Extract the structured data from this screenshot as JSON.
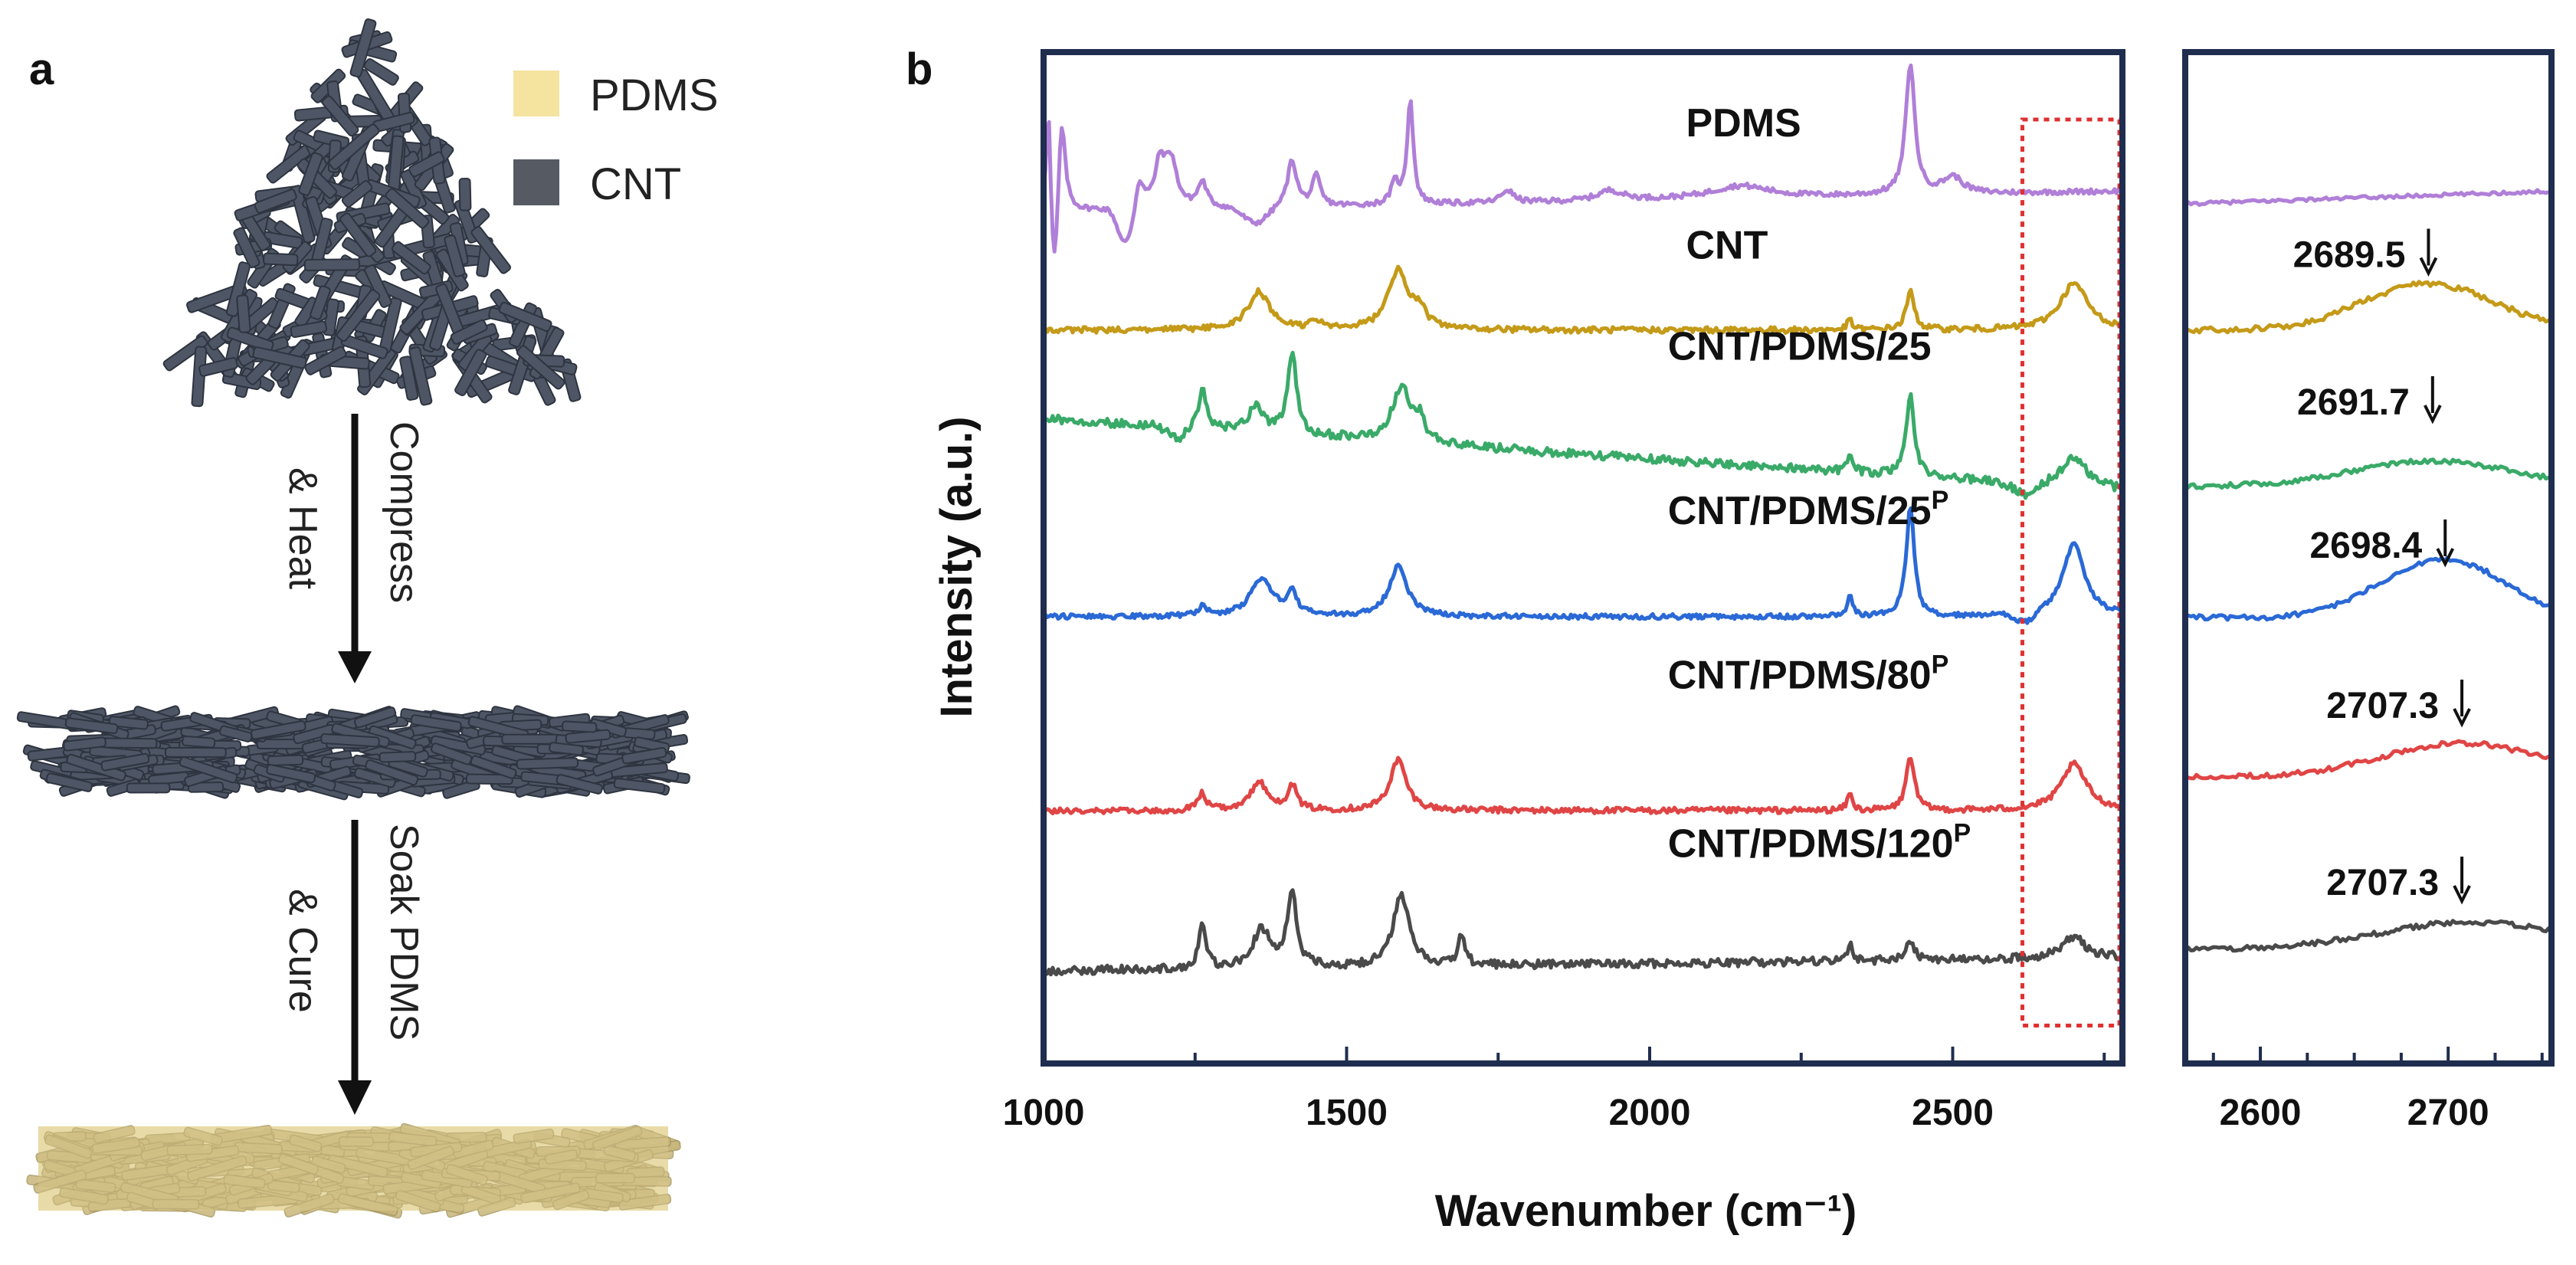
{
  "panel_a": {
    "label": "a",
    "legend": [
      {
        "name": "PDMS",
        "color": "#f5e3a0"
      },
      {
        "name": "CNT",
        "color": "#555a63"
      }
    ],
    "steps": [
      {
        "line1": "Compress",
        "line2": "& Heat"
      },
      {
        "line1": "Soak PDMS",
        "line2": "& Cure"
      }
    ],
    "colors": {
      "cnt": "#4e5665",
      "cnt_edge": "#2e3440",
      "pdms": "#e3d59a"
    }
  },
  "panel_b": {
    "label": "b",
    "frame_color": "#1f2d4f",
    "highlight_color": "#e03030"
  },
  "chart_data": [
    {
      "type": "line",
      "title": "",
      "xlabel": "Wavenumber (cm⁻¹)",
      "ylabel": "Intensity (a.u.)",
      "xlim": [
        1000,
        2780
      ],
      "ylim": [
        0,
        12
      ],
      "xticks": [
        1000,
        1500,
        2000,
        2500
      ],
      "x_minor_step": 250,
      "highlight_box": {
        "x_range": [
          2615,
          2775
        ],
        "y_range": [
          0.45,
          11.2
        ]
      },
      "series": [
        {
          "name": "PDMS",
          "sup": "",
          "color": "#b07fd8",
          "offset": 10.1,
          "label_x": 2060,
          "label_y": 11.0,
          "peaks": [
            [
              1008,
              1.2,
              4
            ],
            [
              1030,
              1.0,
              7
            ],
            [
              1158,
              0.35,
              8
            ],
            [
              1192,
              0.5,
              10
            ],
            [
              1210,
              0.55,
              12
            ],
            [
              1262,
              0.3,
              9
            ],
            [
              1410,
              0.55,
              9
            ],
            [
              1450,
              0.35,
              8
            ],
            [
              1580,
              0.25,
              8
            ],
            [
              1605,
              1.25,
              6
            ],
            [
              1765,
              0.15,
              12
            ],
            [
              1935,
              0.12,
              25
            ],
            [
              2150,
              0.15,
              60
            ],
            [
              2430,
              1.55,
              9
            ],
            [
              2500,
              0.2,
              20
            ]
          ],
          "dips": [
            [
              1018,
              0.9,
              5
            ],
            [
              1135,
              0.45,
              12
            ],
            [
              1350,
              0.2,
              20
            ]
          ],
          "baseline": [
            0.0,
            0.25
          ],
          "noise": 0.03
        },
        {
          "name": "CNT",
          "sup": "",
          "color": "#c49a18",
          "offset": 8.7,
          "label_x": 2060,
          "label_y": 9.55,
          "peaks": [
            [
              1355,
              0.45,
              22
            ],
            [
              1450,
              0.1,
              10
            ],
            [
              1585,
              0.7,
              20
            ],
            [
              1620,
              0.2,
              12
            ],
            [
              2330,
              0.12,
              5
            ],
            [
              2430,
              0.45,
              8
            ],
            [
              2700,
              0.55,
              28
            ]
          ],
          "dips": [],
          "baseline": [
            0.0,
            0.0
          ],
          "noise": 0.035
        },
        {
          "name": "CNT/PDMS/25",
          "sup": "",
          "color": "#3aaa68",
          "offset": 6.8,
          "label_x": 2030,
          "label_y": 8.35,
          "peaks": [
            [
              1262,
              0.45,
              8
            ],
            [
              1350,
              0.3,
              15
            ],
            [
              1410,
              0.95,
              9
            ],
            [
              1590,
              0.65,
              18
            ],
            [
              1620,
              0.25,
              10
            ],
            [
              2330,
              0.25,
              5
            ],
            [
              2430,
              0.95,
              8
            ],
            [
              2700,
              0.35,
              25
            ]
          ],
          "dips": [
            [
              1220,
              0.15,
              15
            ],
            [
              2620,
              0.15,
              20
            ]
          ],
          "baseline": [
            0.85,
            0.0
          ],
          "noise": 0.05
        },
        {
          "name": "CNT/PDMS/25",
          "sup": "P",
          "color": "#2a69d6",
          "offset": 5.3,
          "label_x": 2030,
          "label_y": 6.4,
          "peaks": [
            [
              1262,
              0.12,
              8
            ],
            [
              1360,
              0.45,
              22
            ],
            [
              1410,
              0.25,
              10
            ],
            [
              1585,
              0.6,
              18
            ],
            [
              2330,
              0.25,
              5
            ],
            [
              2430,
              1.3,
              8
            ],
            [
              2700,
              0.85,
              22
            ]
          ],
          "dips": [
            [
              2620,
              0.12,
              15
            ]
          ],
          "baseline": [
            0.0,
            0.0
          ],
          "noise": 0.03
        },
        {
          "name": "CNT/PDMS/80",
          "sup": "P",
          "color": "#e04545",
          "offset": 3.0,
          "label_x": 2030,
          "label_y": 4.45,
          "peaks": [
            [
              1262,
              0.2,
              8
            ],
            [
              1355,
              0.35,
              15
            ],
            [
              1410,
              0.3,
              9
            ],
            [
              1585,
              0.6,
              16
            ],
            [
              2330,
              0.2,
              5
            ],
            [
              2430,
              0.65,
              8
            ],
            [
              2700,
              0.55,
              25
            ]
          ],
          "dips": [],
          "baseline": [
            0.0,
            0.0
          ],
          "noise": 0.035
        },
        {
          "name": "CNT/PDMS/120",
          "sup": "P",
          "color": "#4a4a4a",
          "offset": 1.1,
          "label_x": 2030,
          "label_y": 2.45,
          "peaks": [
            [
              1262,
              0.5,
              7
            ],
            [
              1360,
              0.45,
              18
            ],
            [
              1410,
              0.9,
              9
            ],
            [
              1590,
              0.85,
              16
            ],
            [
              1690,
              0.35,
              7
            ],
            [
              2330,
              0.2,
              5
            ],
            [
              2430,
              0.2,
              10
            ],
            [
              2700,
              0.25,
              25
            ]
          ],
          "dips": [],
          "baseline": [
            0.0,
            0.15
          ],
          "noise": 0.05
        }
      ]
    },
    {
      "type": "line",
      "title": "",
      "xlabel": "",
      "ylabel": "",
      "xlim": [
        2560,
        2755
      ],
      "ylim": [
        0,
        12
      ],
      "xticks": [
        2600,
        2700
      ],
      "x_minor_step": 50,
      "series": [
        {
          "name": "PDMS",
          "color": "#b07fd8",
          "offset": 10.2,
          "amp": 0.0,
          "center": 2700,
          "width": 30,
          "tail": 0.15,
          "noise": 0.02
        },
        {
          "name": "CNT",
          "color": "#c49a18",
          "offset": 8.7,
          "amp": 0.55,
          "center": 2689.5,
          "width": 25,
          "tail": 0.0,
          "noise": 0.035
        },
        {
          "name": "CNT/PDMS/25",
          "color": "#3aaa68",
          "offset": 6.85,
          "amp": 0.3,
          "center": 2691.7,
          "width": 30,
          "tail": 0.0,
          "noise": 0.03
        },
        {
          "name": "CNT/PDMS/25P",
          "color": "#2a69d6",
          "offset": 5.3,
          "amp": 0.75,
          "center": 2698.4,
          "width": 25,
          "tail": -0.1,
          "noise": 0.03
        },
        {
          "name": "CNT/PDMS/80P",
          "color": "#e04545",
          "offset": 3.4,
          "amp": 0.4,
          "center": 2707.3,
          "width": 30,
          "tail": 0.0,
          "noise": 0.03
        },
        {
          "name": "CNT/PDMS/120P",
          "color": "#4a4a4a",
          "offset": 1.35,
          "amp": 0.25,
          "center": 2707.3,
          "width": 30,
          "tail": 0.1,
          "noise": 0.03
        }
      ],
      "annotations": [
        {
          "text": "2689.5",
          "x": 2689.5,
          "y": 9.45,
          "series": 1
        },
        {
          "text": "2691.7",
          "x": 2691.7,
          "y": 7.7,
          "series": 2
        },
        {
          "text": "2698.4",
          "x": 2698.4,
          "y": 6.0,
          "series": 3
        },
        {
          "text": "2707.3",
          "x": 2707.3,
          "y": 4.1,
          "series": 4
        },
        {
          "text": "2707.3",
          "x": 2707.3,
          "y": 2.0,
          "series": 5
        }
      ]
    }
  ]
}
